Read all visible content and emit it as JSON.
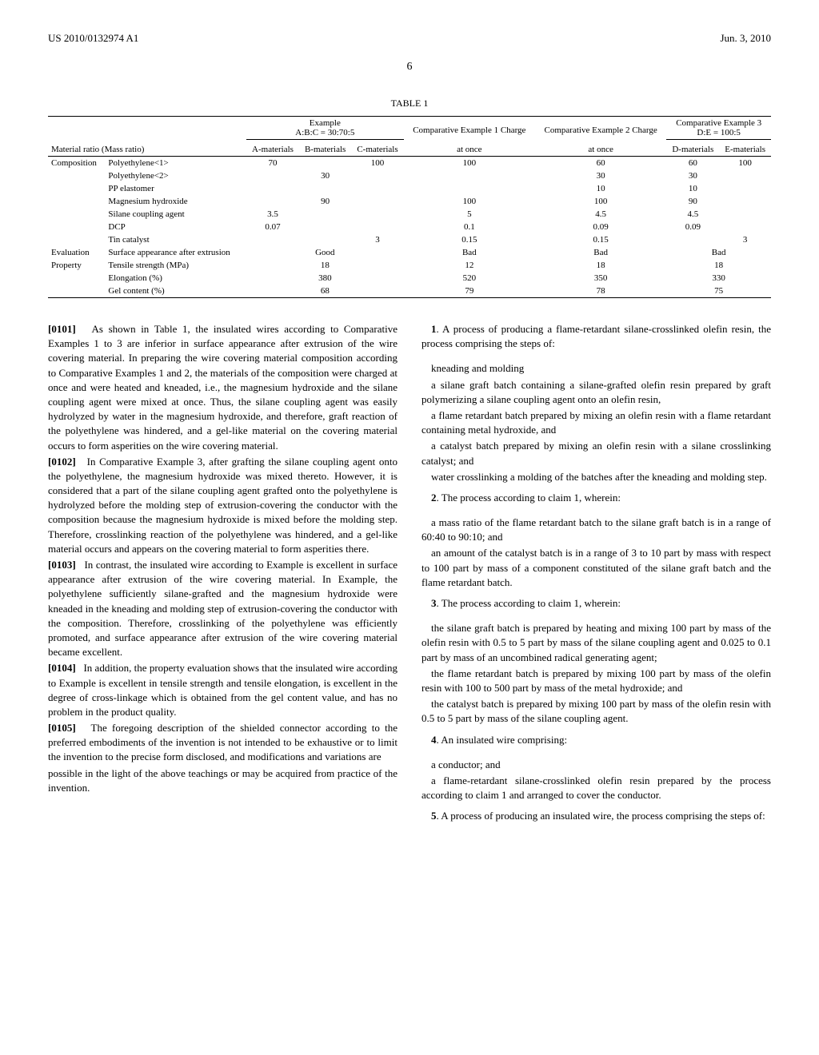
{
  "header": {
    "left": "US 2010/0132974 A1",
    "right": "Jun. 3, 2010",
    "page": "6"
  },
  "table": {
    "caption": "TABLE 1",
    "label": "Material ratio (Mass ratio)",
    "group_headers": {
      "example": "Example",
      "example_ratio": "A:B:C = 30:70:5",
      "comp1": "Comparative Example 1 Charge",
      "comp2": "Comparative Example 2 Charge",
      "comp3": "Comparative Example 3",
      "comp3_ratio": "D:E = 100:5"
    },
    "col_headers": [
      "A-materials",
      "B-materials",
      "C-materials",
      "at once",
      "at once",
      "D-materials",
      "E-materials"
    ],
    "section_composition": "Composition",
    "section_evaluation": "Evaluation",
    "section_property": "Property",
    "rows": {
      "pe1": {
        "label": "Polyethylene<1>",
        "a": "70",
        "b": "",
        "c": "100",
        "d": "100",
        "e": "60",
        "f": "60",
        "g": "100"
      },
      "pe2": {
        "label": "Polyethylene<2>",
        "a": "",
        "b": "30",
        "c": "",
        "d": "",
        "e": "30",
        "f": "30",
        "g": ""
      },
      "pp": {
        "label": "PP elastomer",
        "a": "",
        "b": "",
        "c": "",
        "d": "",
        "e": "10",
        "f": "10",
        "g": ""
      },
      "mg": {
        "label": "Magnesium hydroxide",
        "a": "",
        "b": "90",
        "c": "",
        "d": "100",
        "e": "100",
        "f": "90",
        "g": ""
      },
      "silane": {
        "label": "Silane coupling agent",
        "a": "3.5",
        "b": "",
        "c": "",
        "d": "5",
        "e": "4.5",
        "f": "4.5",
        "g": ""
      },
      "dcp": {
        "label": "DCP",
        "a": "0.07",
        "b": "",
        "c": "",
        "d": "0.1",
        "e": "0.09",
        "f": "0.09",
        "g": ""
      },
      "tin": {
        "label": "Tin catalyst",
        "a": "",
        "b": "",
        "c": "3",
        "d": "0.15",
        "e": "0.15",
        "f": "",
        "g": "3"
      },
      "surface": {
        "label": "Surface appearance after extrusion",
        "ex": "Good",
        "c1": "Bad",
        "c2": "Bad",
        "c3": "Bad"
      },
      "tensile": {
        "label": "Tensile strength (MPa)",
        "ex": "18",
        "c1": "12",
        "c2": "18",
        "c3": "18"
      },
      "elong": {
        "label": "Elongation (%)",
        "ex": "380",
        "c1": "520",
        "c2": "350",
        "c3": "330"
      },
      "gel": {
        "label": "Gel content (%)",
        "ex": "68",
        "c1": "79",
        "c2": "78",
        "c3": "75"
      }
    }
  },
  "paragraphs": {
    "p0101_num": "[0101]",
    "p0101": "As shown in Table 1, the insulated wires according to Comparative Examples 1 to 3 are inferior in surface appearance after extrusion of the wire covering material. In preparing the wire covering material composition according to Comparative Examples 1 and 2, the materials of the composition were charged at once and were heated and kneaded, i.e., the magnesium hydroxide and the silane coupling agent were mixed at once. Thus, the silane coupling agent was easily hydrolyzed by water in the magnesium hydroxide, and therefore, graft reaction of the polyethylene was hindered, and a gel-like material on the covering material occurs to form asperities on the wire covering material.",
    "p0102_num": "[0102]",
    "p0102": "In Comparative Example 3, after grafting the silane coupling agent onto the polyethylene, the magnesium hydroxide was mixed thereto. However, it is considered that a part of the silane coupling agent grafted onto the polyethylene is hydrolyzed before the molding step of extrusion-covering the conductor with the composition because the magnesium hydroxide is mixed before the molding step. Therefore, crosslinking reaction of the polyethylene was hindered, and a gel-like material occurs and appears on the covering material to form asperities there.",
    "p0103_num": "[0103]",
    "p0103": "In contrast, the insulated wire according to Example is excellent in surface appearance after extrusion of the wire covering material. In Example, the polyethylene sufficiently silane-grafted and the magnesium hydroxide were kneaded in the kneading and molding step of extrusion-covering the conductor with the composition. Therefore, crosslinking of the polyethylene was efficiently promoted, and surface appearance after extrusion of the wire covering material became excellent.",
    "p0104_num": "[0104]",
    "p0104": "In addition, the property evaluation shows that the insulated wire according to Example is excellent in tensile strength and tensile elongation, is excellent in the degree of cross-linkage which is obtained from the gel content value, and has no problem in the product quality.",
    "p0105_num": "[0105]",
    "p0105": "The foregoing description of the shielded connector according to the preferred embodiments of the invention is not intended to be exhaustive or to limit the invention to the precise form disclosed, and modifications and variations are",
    "p_col2_top": "possible in the light of the above teachings or may be acquired from practice of the invention."
  },
  "claims": {
    "c1_num": "1",
    "c1": ". A process of producing a flame-retardant silane-crosslinked olefin resin, the process comprising the steps of:",
    "c1a": "kneading and molding",
    "c1b": "a silane graft batch containing a silane-grafted olefin resin prepared by graft polymerizing a silane coupling agent onto an olefin resin,",
    "c1c": "a flame retardant batch prepared by mixing an olefin resin with a flame retardant containing metal hydroxide, and",
    "c1d": "a catalyst batch prepared by mixing an olefin resin with a silane crosslinking catalyst; and",
    "c1e": "water crosslinking a molding of the batches after the kneading and molding step.",
    "c2_num": "2",
    "c2": ". The process according to claim 1, wherein:",
    "c2a": "a mass ratio of the flame retardant batch to the silane graft batch is in a range of 60:40 to 90:10; and",
    "c2b": "an amount of the catalyst batch is in a range of 3 to 10 part by mass with respect to 100 part by mass of a component constituted of the silane graft batch and the flame retardant batch.",
    "c3_num": "3",
    "c3": ". The process according to claim 1, wherein:",
    "c3a": "the silane graft batch is prepared by heating and mixing 100 part by mass of the olefin resin with 0.5 to 5 part by mass of the silane coupling agent and 0.025 to 0.1 part by mass of an uncombined radical generating agent;",
    "c3b": "the flame retardant batch is prepared by mixing 100 part by mass of the olefin resin with 100 to 500 part by mass of the metal hydroxide; and",
    "c3c": "the catalyst batch is prepared by mixing 100 part by mass of the olefin resin with 0.5 to 5 part by mass of the silane coupling agent.",
    "c4_num": "4",
    "c4": ". An insulated wire comprising:",
    "c4a": "a conductor; and",
    "c4b": "a flame-retardant silane-crosslinked olefin resin prepared by the process according to claim 1 and arranged to cover the conductor.",
    "c5_num": "5",
    "c5": ". A process of producing an insulated wire, the process comprising the steps of:"
  }
}
